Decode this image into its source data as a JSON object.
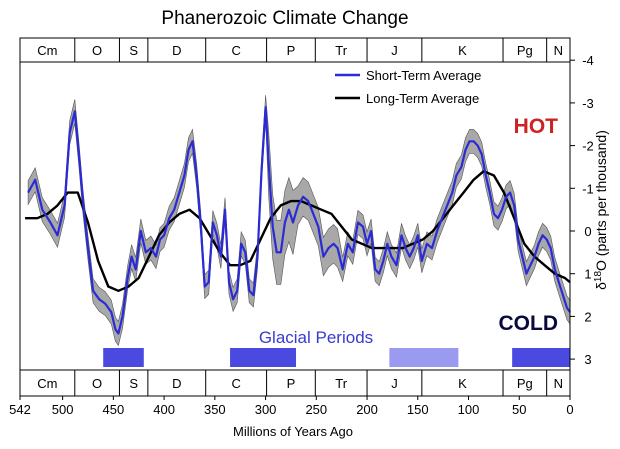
{
  "chart_data": {
    "type": "line",
    "title": "Phanerozoic Climate Change",
    "xlabel": "Millions of Years Ago",
    "ylabel": "δ18O (parts per thousand)",
    "ylabel_parts": {
      "base": "δ",
      "sup": "18",
      "tail": "O (parts per thousand)"
    },
    "xlim": [
      542,
      0
    ],
    "ylim": [
      3.4,
      -4
    ],
    "y_reversed": true,
    "x_ticks": [
      542,
      500,
      450,
      400,
      350,
      300,
      250,
      200,
      150,
      100,
      50,
      0
    ],
    "y_ticks": [
      3,
      2,
      1,
      0,
      -1,
      -2,
      -3,
      -4
    ],
    "legend_position": "top-right",
    "annotations": {
      "hot": "HOT",
      "cold": "COLD",
      "glacial": "Glacial Periods"
    },
    "periods": [
      {
        "label": "Cm",
        "start": 542,
        "end": 488
      },
      {
        "label": "O",
        "start": 488,
        "end": 444
      },
      {
        "label": "S",
        "start": 444,
        "end": 416
      },
      {
        "label": "D",
        "start": 416,
        "end": 359
      },
      {
        "label": "C",
        "start": 359,
        "end": 299
      },
      {
        "label": "P",
        "start": 299,
        "end": 251
      },
      {
        "label": "Tr",
        "start": 251,
        "end": 200
      },
      {
        "label": "J",
        "start": 200,
        "end": 146
      },
      {
        "label": "K",
        "start": 146,
        "end": 66
      },
      {
        "label": "Pg",
        "start": 66,
        "end": 23
      },
      {
        "label": "N",
        "start": 23,
        "end": 0
      }
    ],
    "glacial_periods": [
      {
        "start": 460,
        "end": 420,
        "shade": "dark"
      },
      {
        "start": 335,
        "end": 270,
        "shade": "dark"
      },
      {
        "start": 178,
        "end": 110,
        "shade": "light"
      },
      {
        "start": 57,
        "end": 0,
        "shade": "dark"
      }
    ],
    "series": [
      {
        "name": "Short-Term Average",
        "color": "#2b2bd6",
        "x": [
          534,
          527,
          520,
          512,
          505,
          498,
          493,
          488,
          484,
          480,
          475,
          470,
          464,
          458,
          452,
          448,
          445,
          441,
          436,
          432,
          428,
          423,
          418,
          413,
          408,
          404,
          400,
          395,
          390,
          385,
          380,
          376,
          372,
          368,
          364,
          360,
          356,
          352,
          348,
          344,
          340,
          336,
          332,
          328,
          324,
          320,
          316,
          312,
          308,
          304,
          300,
          297,
          293,
          289,
          285,
          281,
          277,
          273,
          268,
          263,
          258,
          253,
          248,
          243,
          238,
          233,
          229,
          224,
          219,
          214,
          209,
          204,
          200,
          196,
          192,
          188,
          184,
          180,
          176,
          171,
          166,
          162,
          158,
          154,
          150,
          146,
          141,
          136,
          131,
          126,
          121,
          116,
          112,
          107,
          103,
          99,
          95,
          91,
          87,
          83,
          79,
          75,
          71,
          67,
          63,
          59,
          55,
          51,
          47,
          43,
          39,
          35,
          31,
          27,
          23,
          19,
          15,
          11,
          7,
          3,
          0
        ],
        "y": [
          -0.9,
          -1.2,
          -0.5,
          -0.2,
          0.1,
          -0.6,
          -2.3,
          -2.8,
          -1.8,
          -0.7,
          0.4,
          1.4,
          1.6,
          1.7,
          1.9,
          2.3,
          2.4,
          2.0,
          1.1,
          0.6,
          0.9,
          0.0,
          0.5,
          0.4,
          0.6,
          0.2,
          0.1,
          -0.3,
          -0.5,
          -0.9,
          -1.3,
          -1.9,
          -2.1,
          -1.3,
          -0.2,
          1.3,
          1.2,
          -0.2,
          0.1,
          0.6,
          -0.5,
          1.2,
          1.6,
          1.4,
          0.3,
          0.5,
          1.4,
          1.5,
          0.6,
          -1.4,
          -2.9,
          -1.6,
          -0.1,
          0.5,
          0.5,
          -0.2,
          -0.5,
          -0.2,
          -0.6,
          -0.8,
          -0.7,
          -0.4,
          -0.1,
          0.6,
          0.4,
          0.3,
          0.4,
          0.9,
          0.3,
          0.5,
          -0.2,
          -0.1,
          0.3,
          0.0,
          0.9,
          1.0,
          0.7,
          0.3,
          0.6,
          0.8,
          0.1,
          0.4,
          0.6,
          0.4,
          0.1,
          0.7,
          0.3,
          0.4,
          0.0,
          -0.3,
          -0.6,
          -0.9,
          -1.3,
          -1.5,
          -1.9,
          -2.1,
          -2.1,
          -2.0,
          -1.8,
          -1.3,
          -0.9,
          -0.4,
          -0.3,
          -0.5,
          -0.8,
          -0.9,
          -0.6,
          0.2,
          0.6,
          1.0,
          0.8,
          0.6,
          0.3,
          0.1,
          0.2,
          0.4,
          0.9,
          1.2,
          1.5,
          1.8,
          1.9
        ]
      },
      {
        "name": "Long-Term Average",
        "color": "#000000",
        "x": [
          537,
          525,
          515,
          505,
          495,
          485,
          475,
          465,
          455,
          445,
          435,
          425,
          415,
          405,
          395,
          385,
          375,
          365,
          355,
          345,
          335,
          325,
          315,
          305,
          295,
          285,
          275,
          265,
          255,
          245,
          235,
          225,
          215,
          205,
          195,
          185,
          175,
          165,
          155,
          145,
          135,
          125,
          115,
          105,
          95,
          85,
          75,
          65,
          55,
          45,
          35,
          25,
          15,
          5,
          0
        ],
        "y": [
          -0.3,
          -0.3,
          -0.4,
          -0.6,
          -0.9,
          -0.9,
          -0.2,
          0.7,
          1.3,
          1.4,
          1.3,
          1.1,
          0.6,
          0.1,
          -0.2,
          -0.4,
          -0.5,
          -0.3,
          0.1,
          0.5,
          0.8,
          0.8,
          0.7,
          0.2,
          -0.3,
          -0.6,
          -0.7,
          -0.7,
          -0.6,
          -0.5,
          -0.4,
          -0.1,
          0.2,
          0.3,
          0.4,
          0.4,
          0.4,
          0.4,
          0.3,
          0.2,
          0.0,
          -0.3,
          -0.6,
          -0.9,
          -1.2,
          -1.4,
          -1.3,
          -0.9,
          -0.3,
          0.3,
          0.6,
          0.8,
          1.0,
          1.1,
          1.2
        ]
      }
    ]
  }
}
